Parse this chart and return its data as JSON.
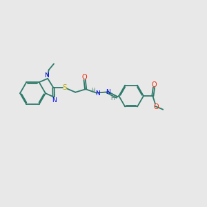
{
  "bg_color": "#e8e8e8",
  "bond_color": "#2d7a6b",
  "bond_width": 1.3,
  "atom_colors": {
    "N": "#0000ee",
    "O": "#ee2200",
    "S": "#bbaa00",
    "H": "#4a7a70",
    "C": "#2d7a6b"
  },
  "figsize": [
    3.0,
    3.0
  ],
  "dpi": 100
}
